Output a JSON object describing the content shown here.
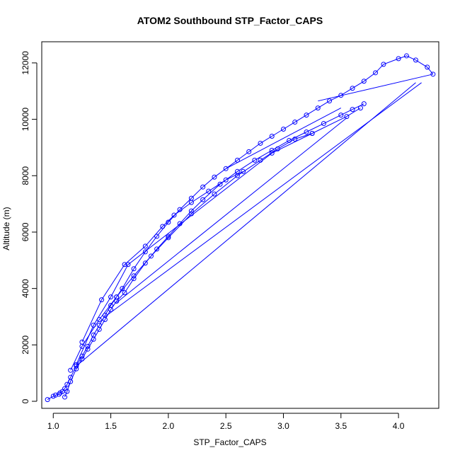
{
  "chart_data": {
    "type": "scatter",
    "title": "ATOM2 Southbound STP_Factor_CAPS",
    "xlabel": "STP_Factor_CAPS",
    "ylabel": "Altitude (m)",
    "xlim": [
      0.9,
      4.35
    ],
    "ylim": [
      -250,
      12750
    ],
    "x_ticks": [
      1.0,
      1.5,
      2.0,
      2.5,
      3.0,
      3.5,
      4.0
    ],
    "x_tick_labels": [
      "1.0",
      "1.5",
      "2.0",
      "2.5",
      "3.0",
      "3.5",
      "4.0"
    ],
    "y_ticks": [
      0,
      2000,
      4000,
      6000,
      8000,
      10000,
      12000
    ],
    "y_tick_labels": [
      "0",
      "2000",
      "4000",
      "6000",
      "8000",
      "10000",
      "12000"
    ],
    "grid": false,
    "marker": "open-circle",
    "line": true,
    "color": "#0000ff",
    "series": [
      {
        "x": [
          0.95,
          1.0,
          1.02,
          1.05,
          1.06,
          1.08,
          1.1,
          1.12,
          1.15,
          1.2,
          1.25,
          1.3,
          1.35,
          1.4,
          1.45,
          1.5,
          1.55,
          1.6,
          1.7,
          1.8,
          1.9,
          2.0,
          2.1,
          2.2,
          2.3,
          2.4,
          2.5,
          2.6,
          2.7,
          2.8,
          2.9,
          3.0,
          3.1,
          3.2,
          3.3,
          3.4,
          3.5,
          3.6,
          3.7,
          3.8,
          3.87,
          4.0,
          4.07,
          4.15,
          4.25,
          4.3
        ],
        "y": [
          60,
          180,
          220,
          250,
          300,
          350,
          450,
          600,
          850,
          1250,
          1600,
          1950,
          2350,
          2700,
          3050,
          3400,
          3700,
          4000,
          4700,
          5300,
          5850,
          6350,
          6800,
          7200,
          7600,
          7950,
          8250,
          8550,
          8850,
          9150,
          9400,
          9650,
          9900,
          10150,
          10400,
          10650,
          10850,
          11100,
          11350,
          11650,
          11950,
          12150,
          12250,
          12100,
          11850,
          11600
        ]
      },
      {
        "x": [
          1.1,
          1.12,
          1.15,
          1.2,
          1.25,
          1.3,
          1.35,
          1.4,
          1.45,
          1.5,
          1.55,
          1.62,
          1.7,
          1.8,
          1.9,
          2.0,
          2.1,
          2.2,
          2.3,
          2.45,
          2.6,
          2.75,
          2.9,
          3.05,
          3.2,
          3.35,
          3.5,
          3.6,
          3.7
        ],
        "y": [
          150,
          350,
          700,
          1150,
          1500,
          1850,
          2200,
          2550,
          2900,
          3250,
          3550,
          3850,
          4350,
          4900,
          5400,
          5850,
          6300,
          6750,
          7150,
          7700,
          8150,
          8550,
          8900,
          9250,
          9550,
          9850,
          10150,
          10350,
          10550
        ]
      },
      {
        "x": [
          1.15,
          1.25,
          1.4,
          1.55,
          1.7,
          1.85,
          2.0,
          2.2,
          2.4,
          2.6,
          2.8,
          2.95,
          3.1,
          3.25
        ],
        "y": [
          1100,
          1950,
          2900,
          3700,
          4450,
          5150,
          5800,
          6650,
          7350,
          8000,
          8550,
          8950,
          9300,
          9500
        ]
      },
      {
        "x": [
          1.2,
          1.35,
          1.5,
          1.65,
          2.9,
          3.25,
          3.55,
          3.67
        ],
        "y": [
          1300,
          2700,
          3700,
          4850,
          8800,
          9500,
          10100,
          10400
        ]
      },
      {
        "x": [
          1.25,
          1.42,
          1.62,
          1.8,
          1.95,
          2.05,
          2.2,
          2.35,
          2.5,
          2.65
        ],
        "y": [
          2100,
          3600,
          4850,
          5500,
          6200,
          6600,
          7050,
          7450,
          7850,
          8150
        ]
      }
    ],
    "connectors": [
      {
        "x": [
          1.2,
          4.15
        ],
        "y": [
          1250,
          11300
        ]
      },
      {
        "x": [
          1.45,
          4.2
        ],
        "y": [
          3000,
          11300
        ]
      },
      {
        "x": [
          1.55,
          3.55
        ],
        "y": [
          3500,
          10050
        ]
      },
      {
        "x": [
          2.5,
          3.5
        ],
        "y": [
          8250,
          10400
        ]
      },
      {
        "x": [
          3.3,
          4.3
        ],
        "y": [
          10650,
          11600
        ]
      }
    ]
  }
}
